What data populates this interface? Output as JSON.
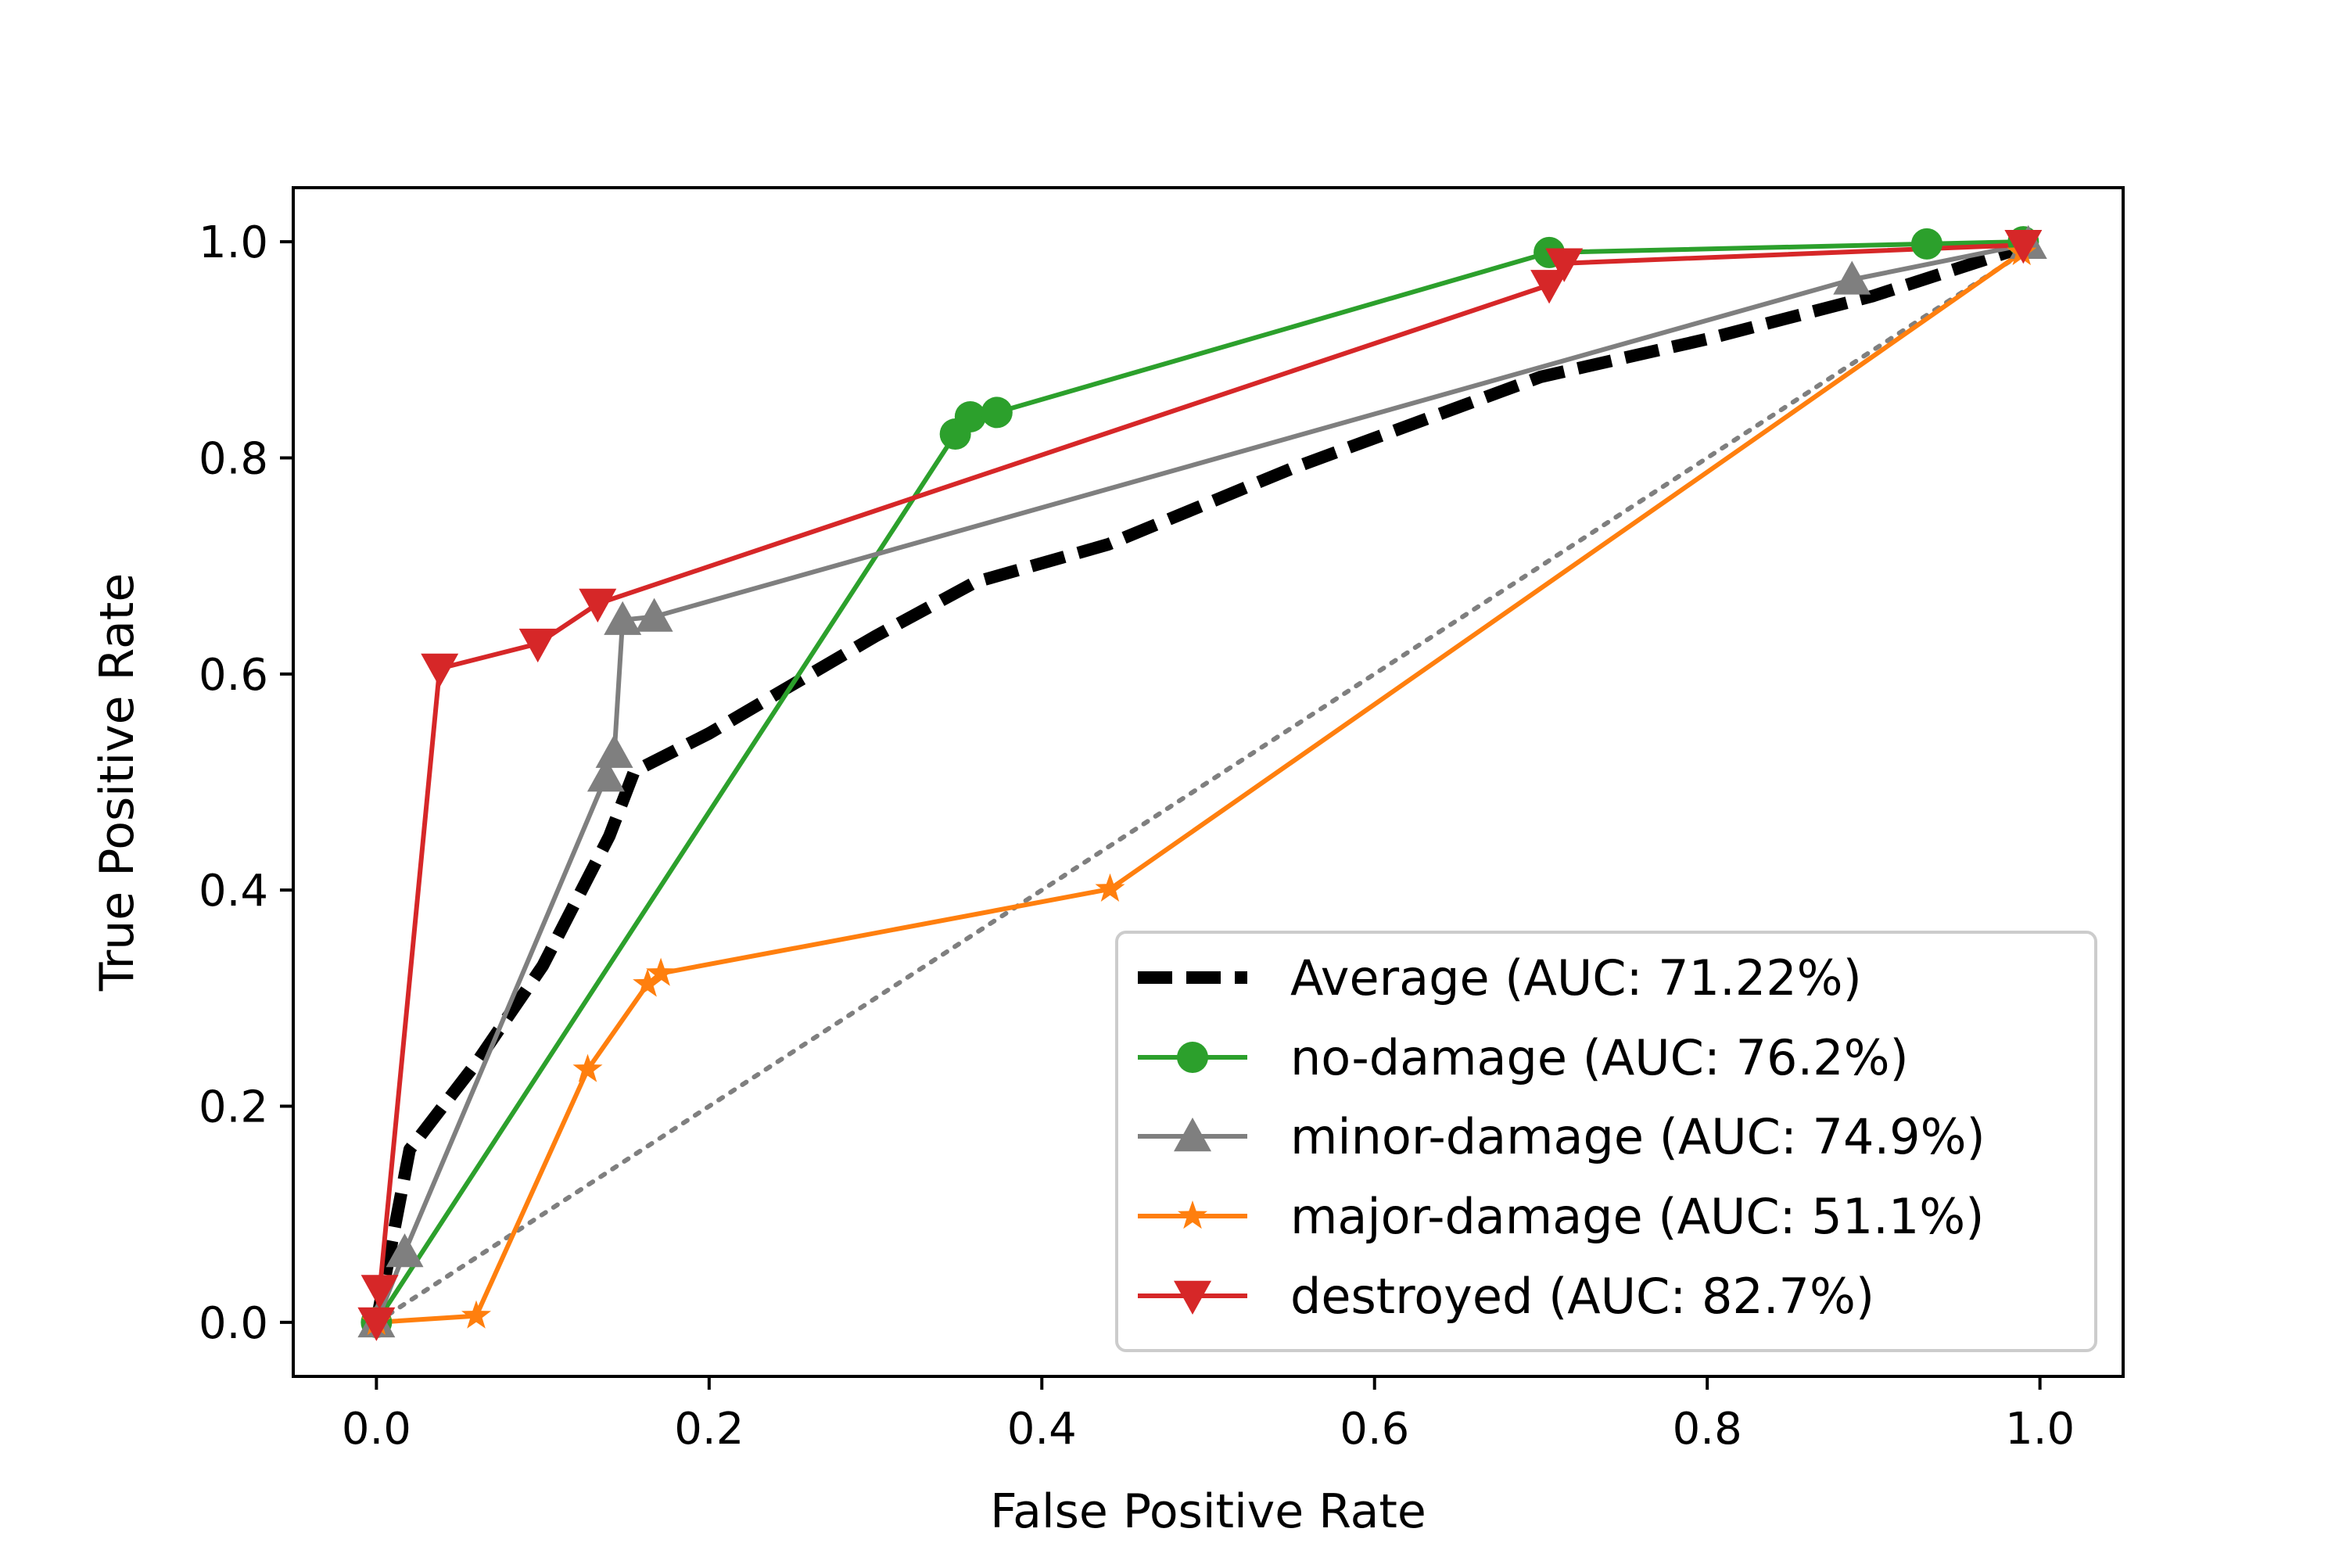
{
  "chart_data": {
    "type": "line",
    "title": "",
    "xlabel": "False Positive Rate",
    "ylabel": "True Positive Rate",
    "xlim": [
      -0.05,
      1.05
    ],
    "ylim": [
      -0.05,
      1.05
    ],
    "xticks": [
      "0.0",
      "0.2",
      "0.4",
      "0.6",
      "0.8",
      "1.0"
    ],
    "yticks": [
      "0.0",
      "0.2",
      "0.4",
      "0.6",
      "0.8",
      "1.0"
    ],
    "grid": false,
    "legend_position": "lower-right",
    "reference_line": {
      "x": [
        0,
        1
      ],
      "y": [
        0,
        1
      ],
      "style": "dotted",
      "color": "#7f7f7f"
    },
    "series": [
      {
        "name": "Average (AUC: 71.22%)",
        "color": "#000000",
        "style": "dashed",
        "marker": "none",
        "x": [
          0,
          0.02,
          0.06,
          0.1,
          0.14,
          0.155,
          0.2,
          0.25,
          0.3,
          0.36,
          0.44,
          0.55,
          0.7,
          0.8,
          0.9,
          1.0
        ],
        "y": [
          0,
          0.16,
          0.24,
          0.33,
          0.45,
          0.51,
          0.545,
          0.59,
          0.635,
          0.685,
          0.72,
          0.79,
          0.875,
          0.91,
          0.95,
          1.0
        ]
      },
      {
        "name": "no-damage (AUC: 76.2%)",
        "color": "#2ca02c",
        "style": "solid",
        "marker": "circle",
        "x": [
          0,
          0.348,
          0.357,
          0.373,
          0.705,
          0.932,
          0.99
        ],
        "y": [
          0,
          0.822,
          0.838,
          0.842,
          0.99,
          0.998,
          1.0
        ]
      },
      {
        "name": "minor-damage (AUC: 74.9%)",
        "color": "#7f7f7f",
        "style": "solid",
        "marker": "triangle-up",
        "x": [
          0,
          0.017,
          0.138,
          0.143,
          0.148,
          0.167,
          0.887,
          0.993
        ],
        "y": [
          0,
          0.065,
          0.505,
          0.527,
          0.65,
          0.653,
          0.965,
          0.998
        ]
      },
      {
        "name": "major-damage (AUC: 51.1%)",
        "color": "#ff7f0e",
        "style": "solid",
        "marker": "star",
        "x": [
          0,
          0.06,
          0.127,
          0.163,
          0.171,
          0.441,
          0.989
        ],
        "y": [
          0,
          0.006,
          0.234,
          0.313,
          0.323,
          0.401,
          0.99
        ]
      },
      {
        "name": "destroyed (AUC: 82.7%)",
        "color": "#d62728",
        "style": "solid",
        "marker": "triangle-down",
        "x": [
          0,
          0.002,
          0.038,
          0.097,
          0.133,
          0.705,
          0.714,
          0.99
        ],
        "y": [
          0,
          0.03,
          0.605,
          0.628,
          0.665,
          0.96,
          0.98,
          0.997
        ]
      }
    ]
  }
}
